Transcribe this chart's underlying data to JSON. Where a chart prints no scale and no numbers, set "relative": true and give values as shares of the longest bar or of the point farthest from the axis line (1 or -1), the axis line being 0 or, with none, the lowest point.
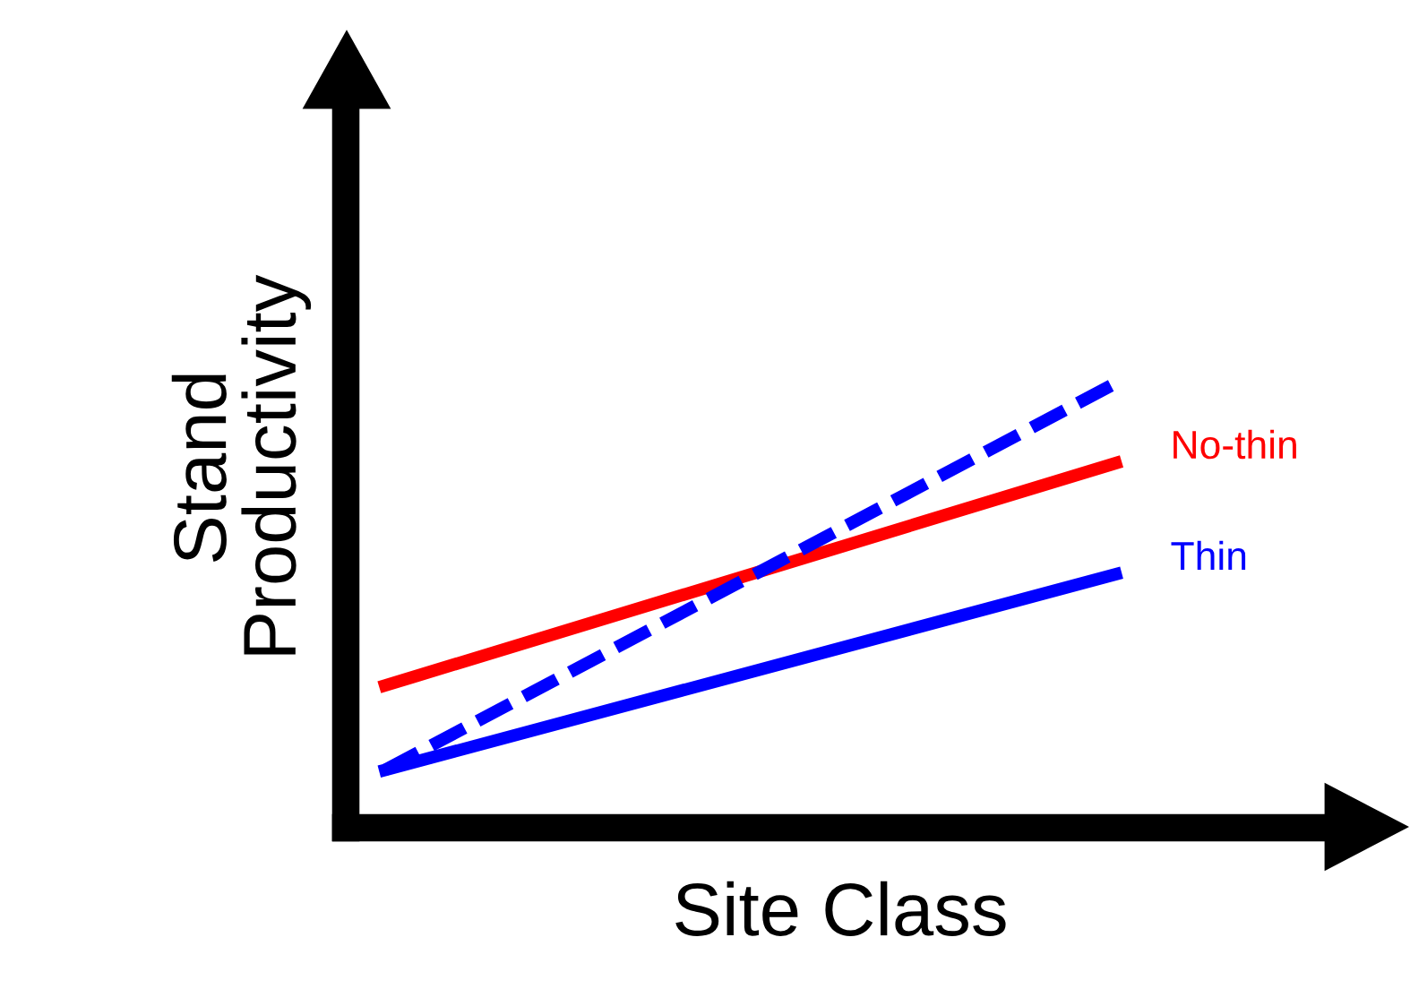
{
  "chart_data": {
    "type": "line",
    "relative": true,
    "xlabel": "Site Class",
    "ylabel": "Stand\nProductivity",
    "categories": [
      null,
      null
    ],
    "grid": false,
    "legend": false,
    "series": [
      {
        "name": "No-thin",
        "color": "#ff0000",
        "values": [
          0.32,
          0.82
        ],
        "line_style": "solid"
      },
      {
        "name": "Thin",
        "color": "#0000ff",
        "values": [
          0.13,
          0.57
        ],
        "line_style": "solid"
      },
      {
        "color": "#0000ff",
        "values": [
          0.13,
          1.0
        ],
        "line_style": "dashed"
      }
    ]
  }
}
